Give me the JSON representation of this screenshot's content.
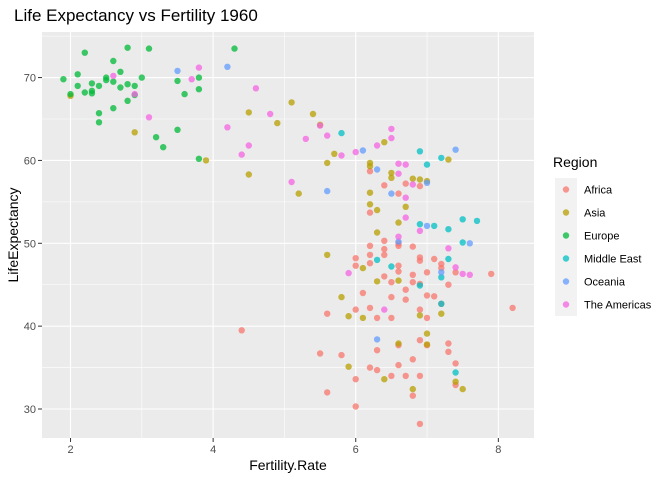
{
  "chart_data": {
    "type": "scatter",
    "title": "Life Expectancy vs Fertility 1960",
    "xlabel": "Fertility.Rate",
    "ylabel": "LifeExpectancy",
    "xlim": [
      1.6,
      8.5
    ],
    "ylim": [
      26.5,
      75.5
    ],
    "x_ticks": [
      2,
      4,
      6,
      8
    ],
    "y_ticks": [
      30,
      40,
      50,
      60,
      70
    ],
    "grid": true,
    "legend": {
      "title": "Region",
      "placement": "right"
    },
    "series": [
      {
        "name": "Africa",
        "color": "#F8766D",
        "points": [
          [
            6.0,
            30.3
          ],
          [
            5.6,
            32.0
          ],
          [
            6.0,
            33.6
          ],
          [
            6.3,
            34.7
          ],
          [
            6.2,
            35.0
          ],
          [
            6.5,
            34.0
          ],
          [
            6.7,
            34.0
          ],
          [
            6.9,
            34.0
          ],
          [
            7.4,
            32.9
          ],
          [
            7.4,
            35.5
          ],
          [
            6.8,
            36.0
          ],
          [
            7.0,
            37.7
          ],
          [
            7.3,
            36.9
          ],
          [
            7.3,
            37.9
          ],
          [
            6.9,
            38.3
          ],
          [
            5.5,
            36.7
          ],
          [
            5.8,
            36.5
          ],
          [
            6.3,
            37.1
          ],
          [
            6.6,
            35.3
          ],
          [
            6.6,
            37.7
          ],
          [
            6.8,
            31.6
          ],
          [
            6.9,
            28.2
          ],
          [
            5.6,
            41.5
          ],
          [
            6.0,
            42.0
          ],
          [
            6.3,
            41.0
          ],
          [
            6.5,
            41.0
          ],
          [
            6.5,
            43.5
          ],
          [
            6.7,
            43.2
          ],
          [
            6.9,
            42.0
          ],
          [
            7.0,
            43.7
          ],
          [
            6.9,
            45.1
          ],
          [
            7.1,
            43.6
          ],
          [
            7.2,
            42.7
          ],
          [
            6.7,
            44.4
          ],
          [
            6.8,
            45.3
          ],
          [
            6.5,
            45.3
          ],
          [
            6.6,
            46.6
          ],
          [
            6.4,
            46.0
          ],
          [
            6.2,
            47.6
          ],
          [
            6.0,
            48.2
          ],
          [
            6.4,
            48.6
          ],
          [
            6.6,
            47.3
          ],
          [
            6.9,
            48.3
          ],
          [
            7.1,
            48.1
          ],
          [
            7.0,
            46.5
          ],
          [
            7.3,
            45.0
          ],
          [
            7.4,
            46.5
          ],
          [
            7.2,
            47.0
          ],
          [
            6.6,
            49.7
          ],
          [
            6.6,
            50.0
          ],
          [
            6.4,
            49.3
          ],
          [
            6.2,
            48.6
          ],
          [
            7.0,
            41.0
          ],
          [
            6.0,
            47.3
          ],
          [
            6.2,
            42.2
          ],
          [
            6.8,
            46.2
          ],
          [
            6.1,
            44.0
          ],
          [
            7.2,
            47.5
          ],
          [
            7.9,
            46.3
          ],
          [
            8.2,
            42.2
          ],
          [
            6.4,
            50.3
          ],
          [
            6.8,
            49.6
          ],
          [
            6.9,
            47.9
          ],
          [
            6.2,
            53.7
          ],
          [
            6.6,
            56.0
          ],
          [
            6.7,
            57.2
          ],
          [
            6.2,
            58.7
          ],
          [
            6.4,
            57.0
          ],
          [
            6.9,
            56.9
          ],
          [
            4.4,
            39.5
          ],
          [
            6.2,
            49.7
          ]
        ]
      },
      {
        "name": "Asia",
        "color": "#B79F00",
        "points": [
          [
            2.0,
            67.8
          ],
          [
            2.9,
            63.4
          ],
          [
            3.9,
            60.0
          ],
          [
            4.5,
            65.8
          ],
          [
            5.6,
            59.7
          ],
          [
            5.7,
            60.8
          ],
          [
            5.1,
            67.0
          ],
          [
            4.9,
            64.5
          ],
          [
            5.4,
            65.6
          ],
          [
            5.5,
            64.3
          ],
          [
            4.5,
            58.3
          ],
          [
            5.2,
            56.0
          ],
          [
            5.6,
            48.6
          ],
          [
            6.2,
            54.7
          ],
          [
            6.3,
            54.0
          ],
          [
            6.2,
            56.1
          ],
          [
            6.2,
            59.7
          ],
          [
            6.5,
            58.5
          ],
          [
            6.2,
            59.3
          ],
          [
            6.8,
            57.8
          ],
          [
            6.9,
            57.7
          ],
          [
            7.0,
            57.5
          ],
          [
            6.5,
            57.9
          ],
          [
            6.4,
            62.2
          ],
          [
            7.3,
            60.1
          ],
          [
            5.8,
            43.5
          ],
          [
            5.9,
            41.2
          ],
          [
            6.1,
            41.0
          ],
          [
            6.6,
            37.9
          ],
          [
            7.0,
            37.8
          ],
          [
            7.4,
            33.3
          ],
          [
            7.5,
            32.4
          ],
          [
            6.8,
            32.4
          ],
          [
            6.4,
            33.6
          ],
          [
            5.9,
            35.1
          ],
          [
            6.3,
            45.4
          ],
          [
            6.6,
            45.5
          ],
          [
            6.9,
            41.3
          ],
          [
            7.0,
            39.1
          ],
          [
            7.2,
            41.5
          ],
          [
            6.1,
            47.0
          ],
          [
            6.3,
            51.3
          ],
          [
            6.6,
            52.5
          ],
          [
            6.7,
            54.4
          ]
        ]
      },
      {
        "name": "Europe",
        "color": "#00BA38",
        "points": [
          [
            1.9,
            69.8
          ],
          [
            2.0,
            68.0
          ],
          [
            2.1,
            70.4
          ],
          [
            2.2,
            73.0
          ],
          [
            2.3,
            68.4
          ],
          [
            2.3,
            69.3
          ],
          [
            2.4,
            69.0
          ],
          [
            2.5,
            70.0
          ],
          [
            2.6,
            69.5
          ],
          [
            2.6,
            72.0
          ],
          [
            2.7,
            70.7
          ],
          [
            2.7,
            68.8
          ],
          [
            2.8,
            69.2
          ],
          [
            2.8,
            67.2
          ],
          [
            2.9,
            69.0
          ],
          [
            2.9,
            67.9
          ],
          [
            3.0,
            70.0
          ],
          [
            3.1,
            73.5
          ],
          [
            3.2,
            62.8
          ],
          [
            3.3,
            61.6
          ],
          [
            3.5,
            69.6
          ],
          [
            3.6,
            68.0
          ],
          [
            3.8,
            70.0
          ],
          [
            3.8,
            68.6
          ],
          [
            4.3,
            73.5
          ],
          [
            2.4,
            64.6
          ],
          [
            2.4,
            65.7
          ],
          [
            2.6,
            66.3
          ],
          [
            2.3,
            68.1
          ],
          [
            2.8,
            73.6
          ],
          [
            2.5,
            69.7
          ],
          [
            3.8,
            60.2
          ],
          [
            3.5,
            63.7
          ],
          [
            2.2,
            68.2
          ],
          [
            2.1,
            69.0
          ]
        ]
      },
      {
        "name": "Middle East",
        "color": "#00BFC4",
        "points": [
          [
            5.8,
            63.3
          ],
          [
            6.9,
            61.1
          ],
          [
            7.0,
            59.5
          ],
          [
            7.2,
            60.3
          ],
          [
            6.9,
            52.3
          ],
          [
            7.1,
            52.1
          ],
          [
            7.3,
            51.7
          ],
          [
            7.5,
            52.9
          ],
          [
            7.7,
            52.7
          ],
          [
            7.5,
            50.1
          ],
          [
            7.3,
            48.1
          ],
          [
            7.2,
            45.9
          ],
          [
            6.9,
            44.9
          ],
          [
            7.2,
            42.7
          ],
          [
            7.4,
            34.4
          ],
          [
            6.3,
            48.0
          ],
          [
            6.5,
            47.2
          ]
        ]
      },
      {
        "name": "Oceania",
        "color": "#619CFF",
        "points": [
          [
            3.5,
            70.8
          ],
          [
            4.2,
            71.3
          ],
          [
            5.6,
            56.3
          ],
          [
            6.1,
            61.2
          ],
          [
            6.3,
            58.9
          ],
          [
            6.5,
            56.0
          ],
          [
            7.0,
            57.3
          ],
          [
            7.4,
            61.3
          ],
          [
            7.2,
            46.5
          ],
          [
            7.6,
            50.0
          ],
          [
            6.3,
            38.4
          ],
          [
            6.6,
            50.2
          ],
          [
            7.0,
            52.1
          ]
        ]
      },
      {
        "name": "The Americas",
        "color": "#F564E3",
        "points": [
          [
            2.6,
            70.2
          ],
          [
            2.9,
            68.0
          ],
          [
            3.1,
            65.2
          ],
          [
            3.7,
            69.8
          ],
          [
            3.8,
            71.2
          ],
          [
            4.2,
            64.0
          ],
          [
            4.4,
            60.7
          ],
          [
            4.5,
            61.8
          ],
          [
            4.6,
            68.7
          ],
          [
            4.8,
            65.6
          ],
          [
            5.1,
            57.4
          ],
          [
            5.3,
            62.6
          ],
          [
            5.5,
            64.2
          ],
          [
            5.6,
            63.0
          ],
          [
            5.8,
            60.6
          ],
          [
            6.0,
            61.0
          ],
          [
            6.3,
            61.8
          ],
          [
            6.5,
            62.7
          ],
          [
            6.5,
            63.8
          ],
          [
            6.6,
            59.6
          ],
          [
            6.7,
            59.5
          ],
          [
            6.6,
            58.4
          ],
          [
            6.8,
            57.1
          ],
          [
            6.7,
            55.5
          ],
          [
            6.7,
            53.1
          ],
          [
            6.9,
            51.5
          ],
          [
            6.6,
            50.8
          ],
          [
            7.3,
            49.4
          ],
          [
            7.4,
            47.1
          ],
          [
            7.5,
            46.3
          ],
          [
            7.6,
            46.2
          ],
          [
            5.9,
            46.4
          ],
          [
            6.4,
            42.0
          ]
        ]
      }
    ]
  }
}
